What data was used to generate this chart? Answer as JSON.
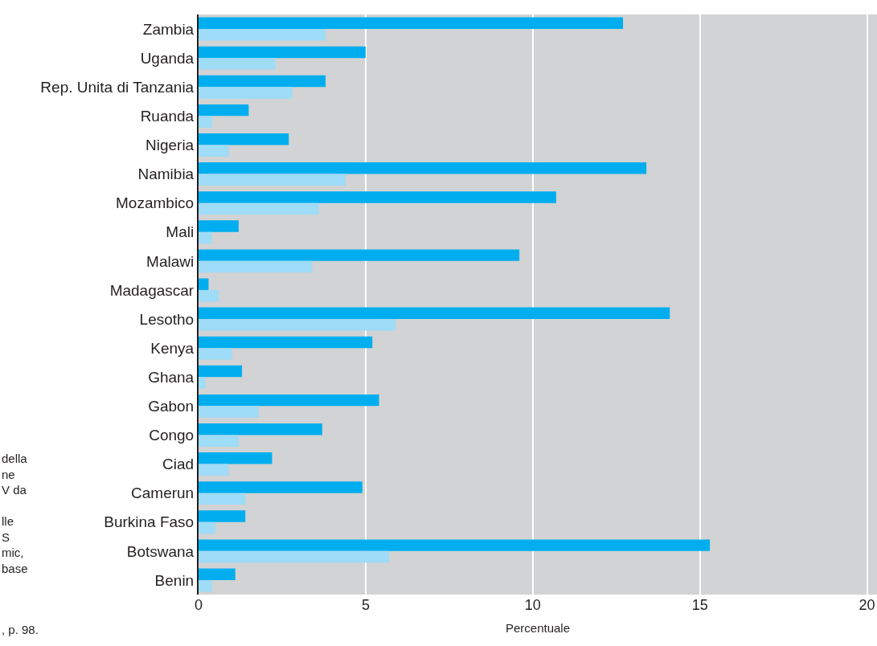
{
  "chart_data": {
    "type": "bar",
    "orientation": "horizontal",
    "xlabel": "Percentuale",
    "categories": [
      "Zambia",
      "Uganda",
      "Rep. Unita di Tanzania",
      "Ruanda",
      "Nigeria",
      "Namibia",
      "Mozambico",
      "Mali",
      "Malawi",
      "Madagascar",
      "Lesotho",
      "Kenya",
      "Ghana",
      "Gabon",
      "Congo",
      "Ciad",
      "Camerun",
      "Burkina Faso",
      "Botswana",
      "Benin"
    ],
    "series": [
      {
        "color": "#00aeef",
        "values": [
          12.7,
          5.0,
          3.8,
          1.5,
          2.7,
          13.4,
          10.7,
          1.2,
          9.6,
          0.3,
          14.1,
          5.2,
          1.3,
          5.4,
          3.7,
          2.2,
          4.9,
          1.4,
          15.3,
          1.1
        ]
      },
      {
        "color": "#9edcf8",
        "values": [
          3.8,
          2.3,
          2.8,
          0.4,
          0.9,
          4.4,
          3.6,
          0.4,
          3.4,
          0.6,
          5.9,
          1.0,
          0.2,
          1.8,
          1.2,
          0.9,
          1.4,
          0.5,
          5.7,
          0.4
        ]
      }
    ],
    "xlim": [
      0,
      20.3
    ],
    "xticks": [
      0,
      5,
      10,
      15,
      20
    ],
    "grid": "x",
    "annotations": [
      "della\nne\nV da\n\nlle\nS\nmic,\nbase",
      ", p. 98."
    ]
  }
}
